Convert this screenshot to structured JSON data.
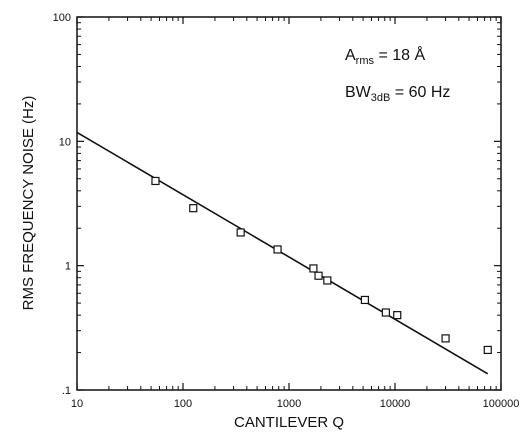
{
  "chart_data": {
    "type": "scatter",
    "xlabel": "CANTILEVER Q",
    "ylabel": "RMS FREQUENCY NOISE (Hz)",
    "x_scale": "log",
    "y_scale": "log",
    "xlim": [
      10,
      100000
    ],
    "ylim": [
      0.1,
      100
    ],
    "x_ticks": [
      10,
      100,
      1000,
      10000,
      100000
    ],
    "x_tick_labels": [
      "10",
      "100",
      "1000",
      "10000",
      "100000"
    ],
    "y_ticks": [
      0.1,
      1,
      10,
      100
    ],
    "y_tick_labels": [
      ".1",
      "1",
      "10",
      "100"
    ],
    "grid": false,
    "annotations": [
      {
        "main": "A",
        "sub": "rms",
        "suffix": " = 18 Å"
      },
      {
        "main": "BW",
        "sub": "3dB",
        "suffix": " = 60 Hz"
      }
    ],
    "series": [
      {
        "marker": "open-square",
        "points": [
          [
            55,
            4.8
          ],
          [
            125,
            2.9
          ],
          [
            350,
            1.85
          ],
          [
            780,
            1.35
          ],
          [
            1700,
            0.95
          ],
          [
            1900,
            0.83
          ],
          [
            2300,
            0.76
          ],
          [
            5200,
            0.53
          ],
          [
            8200,
            0.42
          ],
          [
            10500,
            0.4
          ],
          [
            30000,
            0.26
          ],
          [
            75000,
            0.21
          ]
        ]
      },
      {
        "style": "line",
        "points": [
          [
            10,
            11.8
          ],
          [
            75000,
            0.135
          ]
        ]
      }
    ]
  }
}
